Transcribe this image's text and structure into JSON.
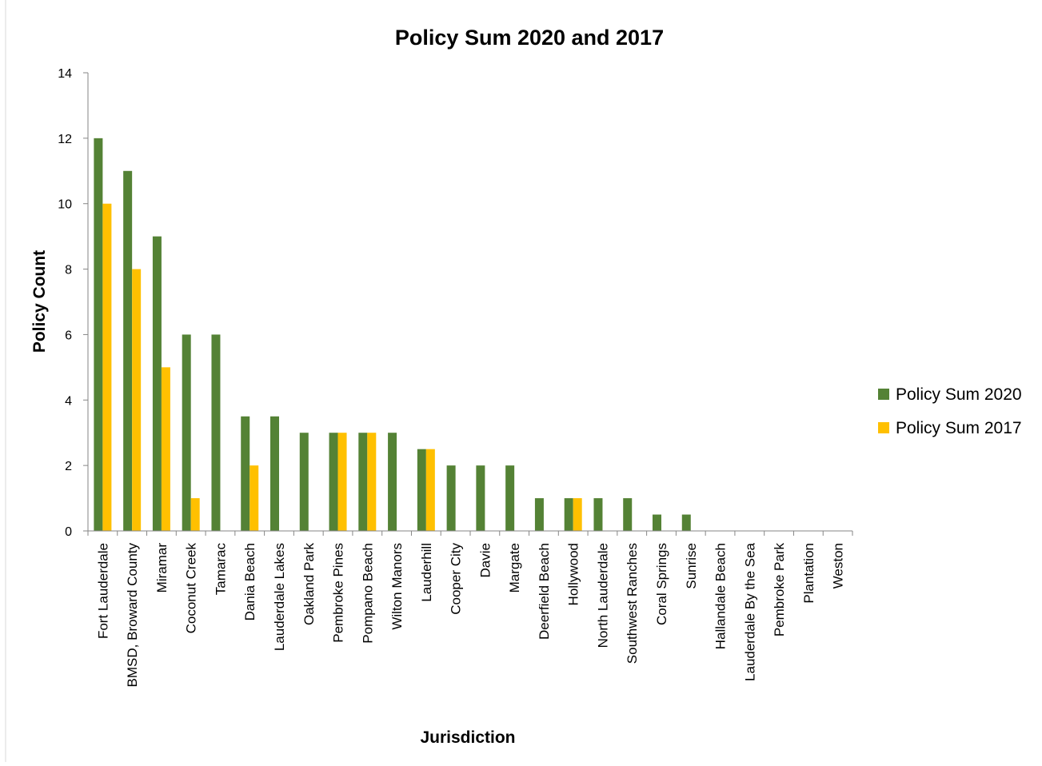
{
  "chart_data": {
    "type": "bar",
    "title": "Policy Sum 2020 and 2017",
    "xlabel": "Jurisdiction",
    "ylabel": "Policy Count",
    "ylim": [
      0,
      14
    ],
    "yticks": [
      0,
      2,
      4,
      6,
      8,
      10,
      12,
      14
    ],
    "grid": false,
    "legend_position": "right",
    "categories": [
      "Fort Lauderdale",
      "BMSD, Broward County",
      "Miramar",
      "Coconut Creek",
      "Tamarac",
      "Dania Beach",
      "Lauderdale Lakes",
      "Oakland Park",
      "Pembroke Pines",
      "Pompano Beach",
      "Wilton Manors",
      "Lauderhill",
      "Cooper City",
      "Davie",
      "Margate",
      "Deerfield Beach",
      "Hollywood",
      "North Lauderdale",
      "Southwest Ranches",
      "Coral Springs",
      "Sunrise",
      "Hallandale Beach",
      "Lauderdale By the Sea",
      "Pembroke Park",
      "Plantation",
      "Weston"
    ],
    "series": [
      {
        "name": "Policy Sum 2020",
        "color": "#548235",
        "values": [
          12,
          11,
          9,
          6,
          6,
          3.5,
          3.5,
          3,
          3,
          3,
          3,
          2.5,
          2,
          2,
          2,
          1,
          1,
          1,
          1,
          0.5,
          0.5,
          0,
          0,
          0,
          0,
          0
        ]
      },
      {
        "name": "Policy Sum 2017",
        "color": "#FFC000",
        "values": [
          10,
          8,
          5,
          1,
          0,
          2,
          0,
          0,
          3,
          3,
          0,
          2.5,
          0,
          0,
          0,
          0,
          1,
          0,
          0,
          0,
          0,
          0,
          0,
          0,
          0,
          0
        ]
      }
    ]
  }
}
